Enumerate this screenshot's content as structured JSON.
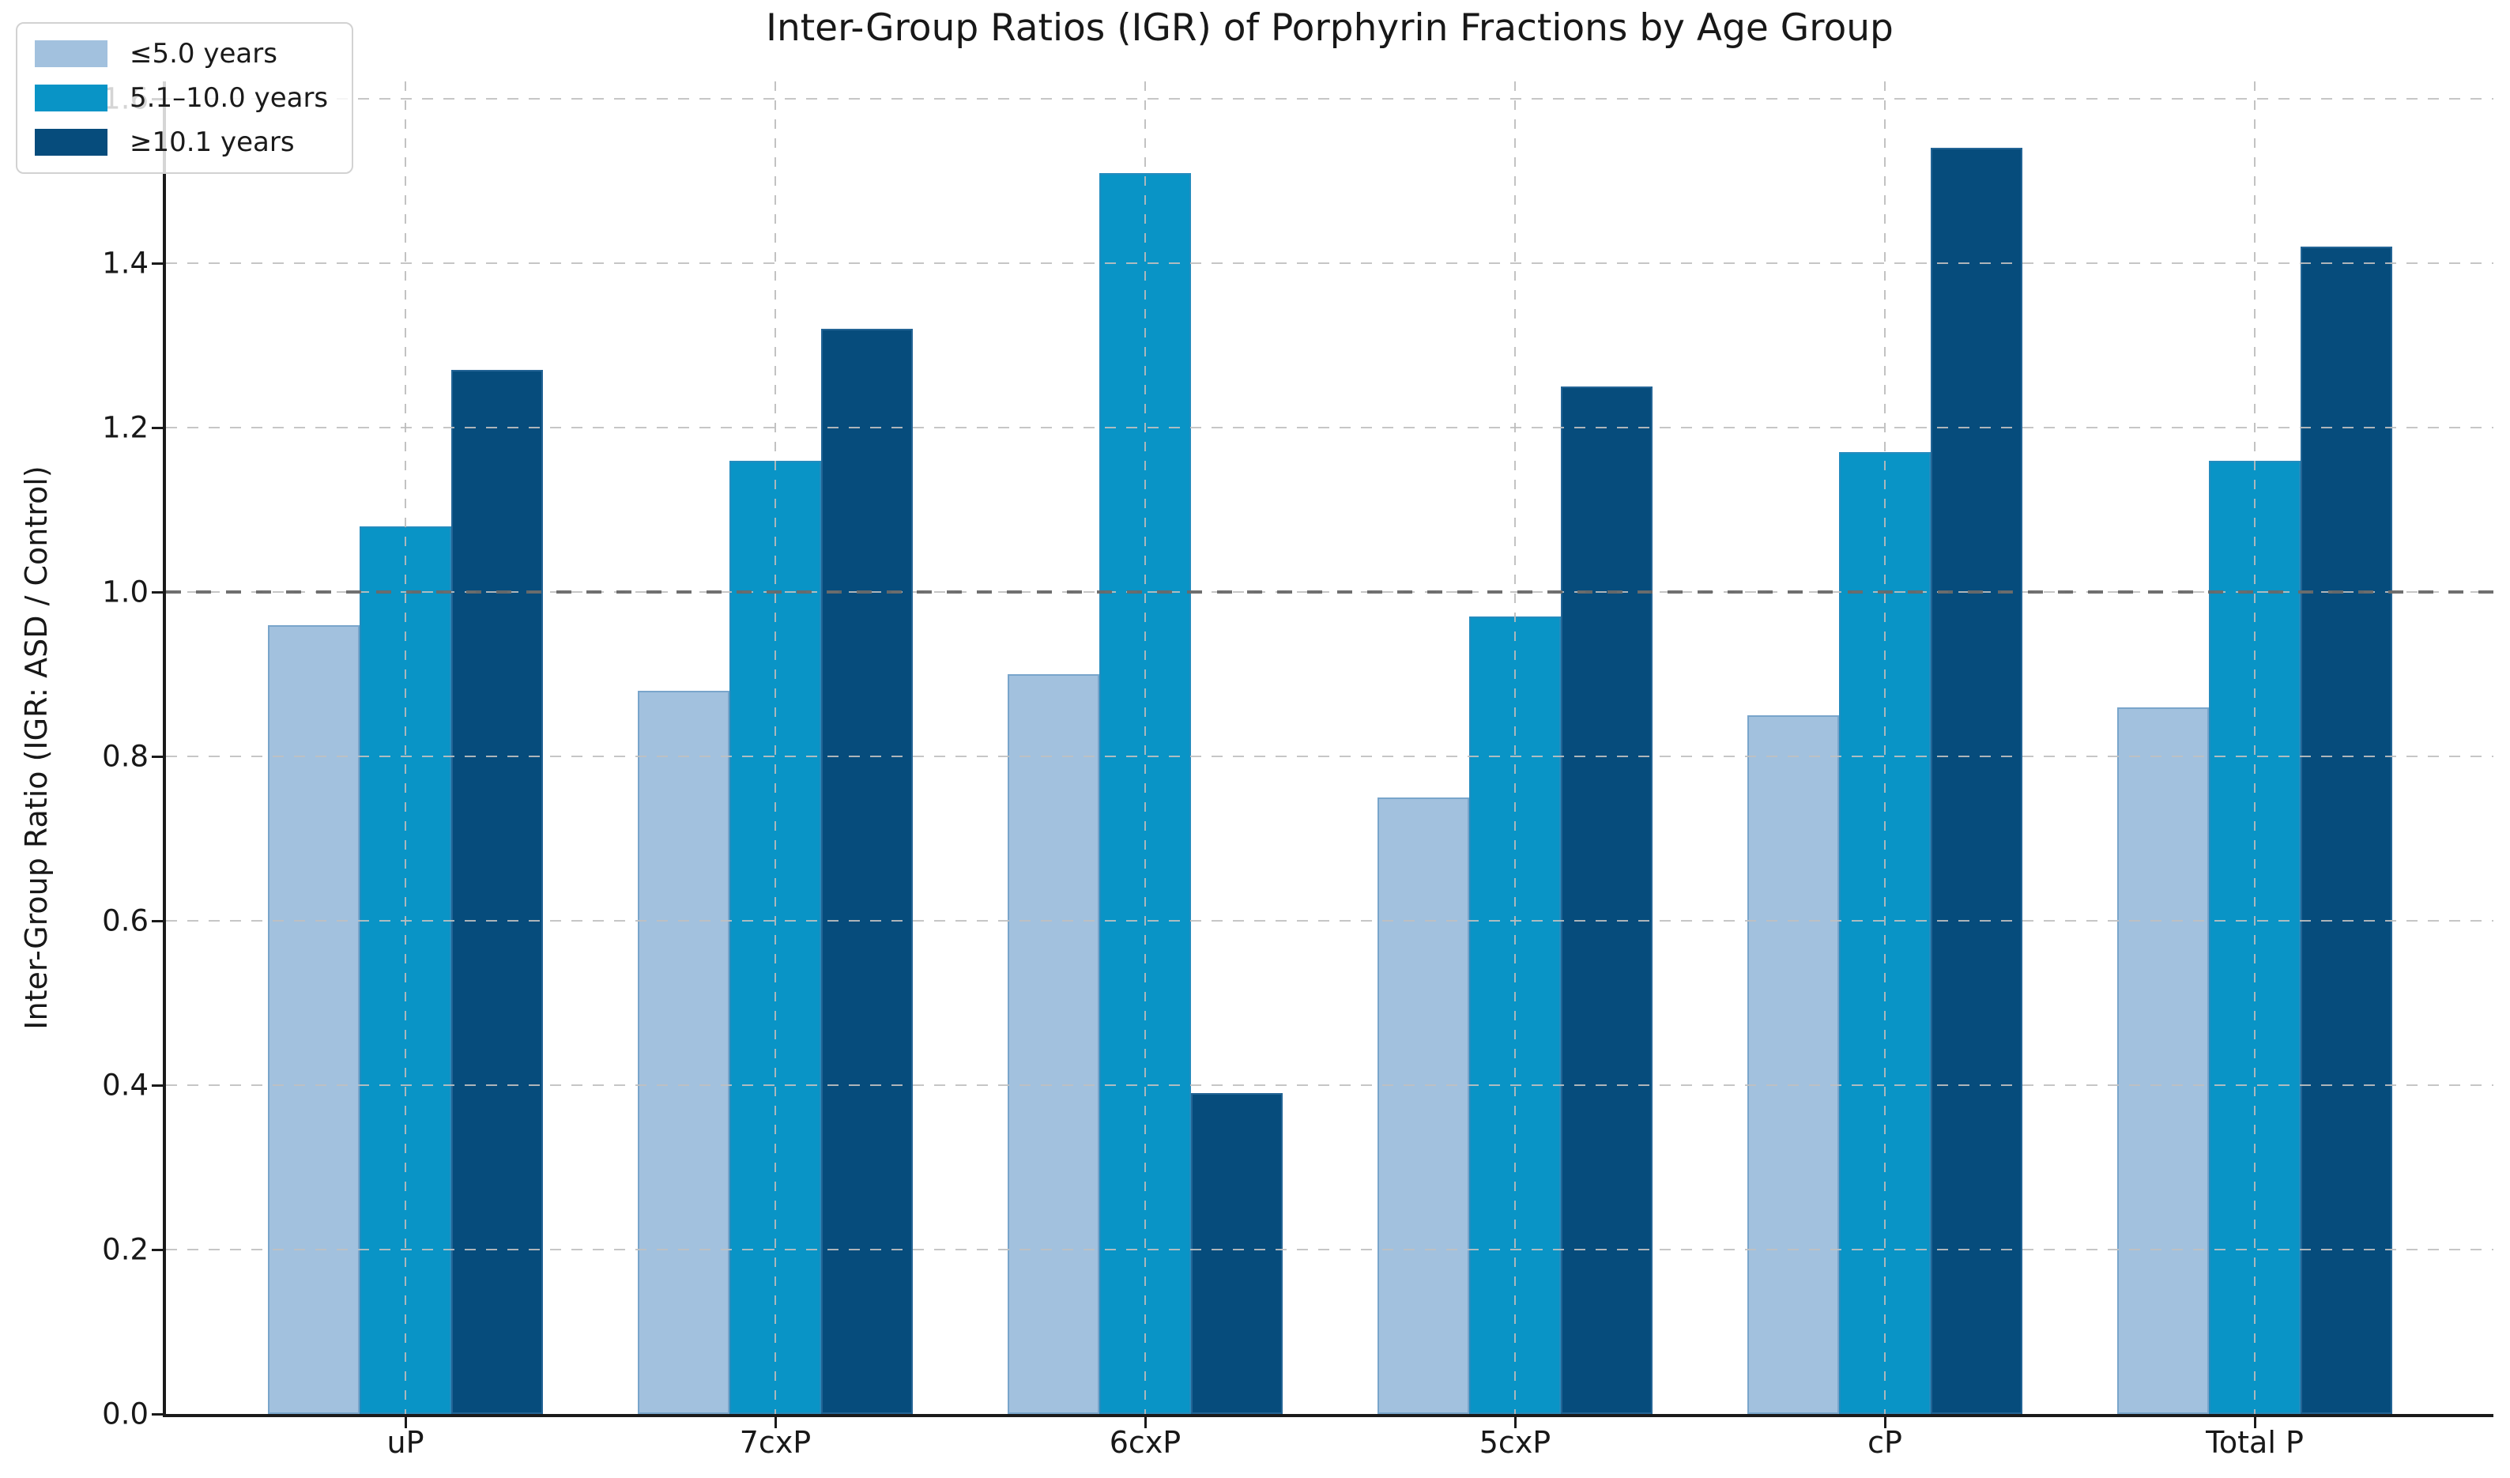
{
  "chart_data": {
    "type": "bar",
    "title": "Inter-Group Ratios (IGR) of Porphyrin Fractions by Age Group",
    "ylabel": "Inter-Group Ratio (IGR: ASD / Control)",
    "categories": [
      "uP",
      "7cxP",
      "6cxP",
      "5cxP",
      "cP",
      "Total P"
    ],
    "series": [
      {
        "name": "≤5.0 years",
        "color": "#a2c1de",
        "values": [
          0.96,
          0.88,
          0.9,
          0.75,
          0.85,
          0.86
        ]
      },
      {
        "name": "5.1–10.0 years",
        "color": "#0994c6",
        "values": [
          1.08,
          1.16,
          1.51,
          0.97,
          1.17,
          1.16
        ]
      },
      {
        "name": "≥10.1 years",
        "color": "#064c7c",
        "values": [
          1.27,
          1.32,
          0.39,
          1.25,
          1.54,
          1.42
        ]
      }
    ],
    "yticks": [
      "0.0",
      "0.2",
      "0.4",
      "0.6",
      "0.8",
      "1.0",
      "1.2",
      "1.4",
      "1.6"
    ],
    "ylim": [
      0.0,
      1.62
    ],
    "reference_line": 1.0,
    "grid": "dashed",
    "legend_position": "upper-left",
    "colors": {
      "grid": "#c0c0c0",
      "reference_line": "#696969",
      "text": "#181818",
      "axis": "#1a1a1a"
    }
  }
}
